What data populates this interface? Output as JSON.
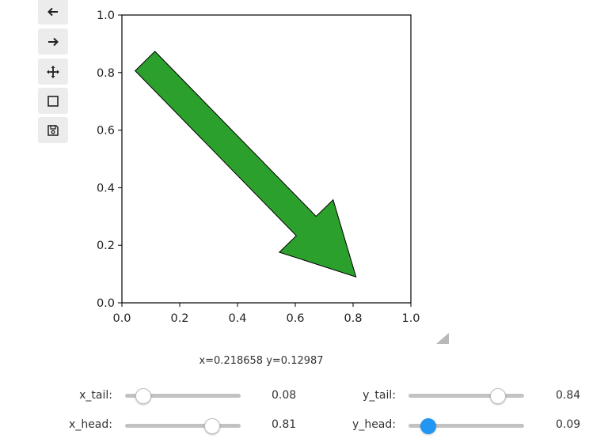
{
  "toolbar": {
    "items": [
      {
        "name": "back",
        "icon": "arrow-left-icon"
      },
      {
        "name": "forward",
        "icon": "arrow-right-icon"
      },
      {
        "name": "pan",
        "icon": "move-icon"
      },
      {
        "name": "zoom",
        "icon": "square-icon"
      },
      {
        "name": "save",
        "icon": "save-icon"
      }
    ]
  },
  "chart_data": {
    "type": "arrow",
    "arrow": {
      "x_tail": 0.08,
      "y_tail": 0.84,
      "x_head": 0.81,
      "y_head": 0.09,
      "color": "#2ca02c"
    },
    "xlim": [
      0.0,
      1.0
    ],
    "ylim": [
      0.0,
      1.0
    ],
    "x_ticks": [
      "0.0",
      "0.2",
      "0.4",
      "0.6",
      "0.8",
      "1.0"
    ],
    "y_ticks": [
      "0.0",
      "0.2",
      "0.4",
      "0.6",
      "0.8",
      "1.0"
    ]
  },
  "status": {
    "coords": "x=0.218658 y=0.12987"
  },
  "sliders": {
    "x_tail": {
      "label": "x_tail:",
      "value": 0.08,
      "display": "0.08",
      "min": 0,
      "max": 1
    },
    "y_tail": {
      "label": "y_tail:",
      "value": 0.84,
      "display": "0.84",
      "min": 0,
      "max": 1
    },
    "x_head": {
      "label": "x_head:",
      "value": 0.81,
      "display": "0.81",
      "min": 0,
      "max": 1
    },
    "y_head": {
      "label": "y_head:",
      "value": 0.09,
      "display": "0.09",
      "min": 0,
      "max": 1
    }
  }
}
